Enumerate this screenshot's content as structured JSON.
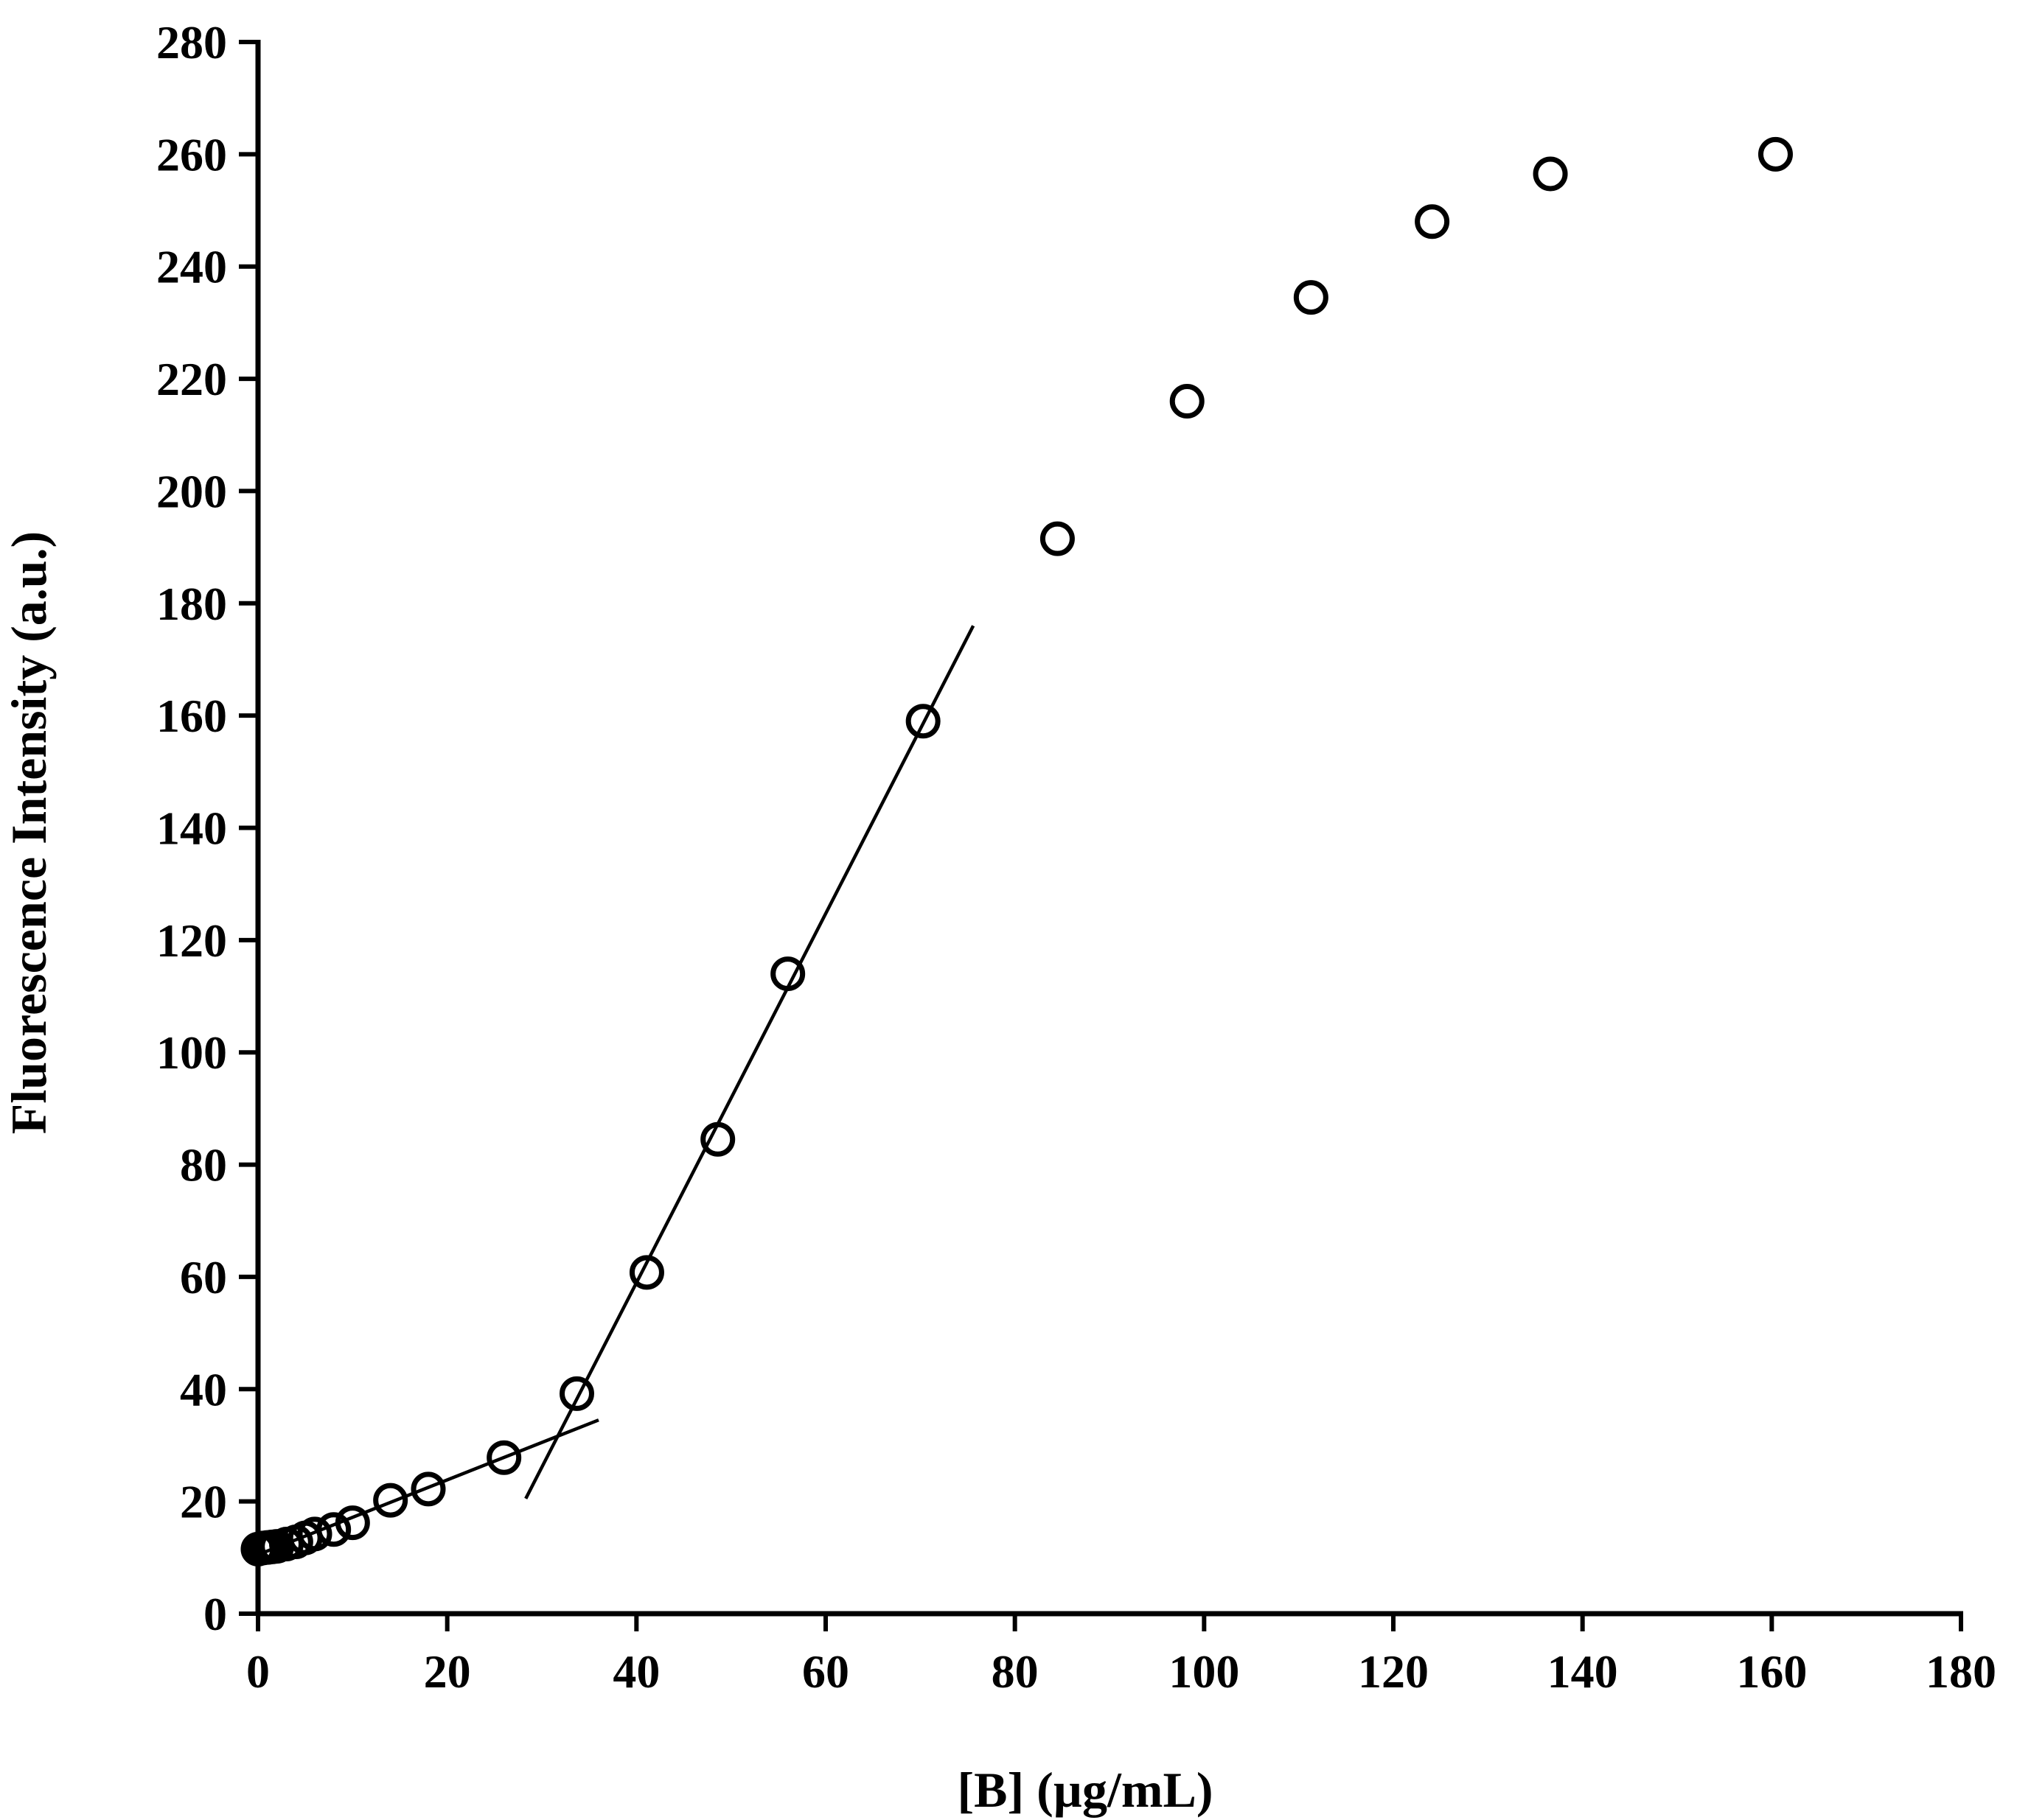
{
  "chart_data": {
    "type": "scatter",
    "title": "",
    "xlabel": "[B] (µg/mL)",
    "ylabel": "Fluorescence Intensity (a.u.)",
    "xlim": [
      0,
      180
    ],
    "ylim": [
      0,
      280
    ],
    "xticks": [
      0,
      20,
      40,
      60,
      80,
      100,
      120,
      140,
      160,
      180
    ],
    "yticks": [
      0,
      20,
      40,
      60,
      80,
      100,
      120,
      140,
      160,
      180,
      200,
      220,
      240,
      260,
      280
    ],
    "grid": false,
    "legend": "none",
    "series": [
      {
        "name": "data",
        "marker": "open-circle",
        "color": "#000000",
        "points": [
          {
            "x": 0.0,
            "y": 11.5
          },
          {
            "x": 0.5,
            "y": 11.7
          },
          {
            "x": 1.0,
            "y": 11.8
          },
          {
            "x": 1.5,
            "y": 11.9
          },
          {
            "x": 2.0,
            "y": 12.0
          },
          {
            "x": 3.0,
            "y": 12.4
          },
          {
            "x": 4.0,
            "y": 12.8
          },
          {
            "x": 5.0,
            "y": 13.5
          },
          {
            "x": 6.0,
            "y": 14.2
          },
          {
            "x": 8.0,
            "y": 15.0
          },
          {
            "x": 10.0,
            "y": 16.2
          },
          {
            "x": 14.0,
            "y": 20.2
          },
          {
            "x": 18.0,
            "y": 22.2
          },
          {
            "x": 26.0,
            "y": 27.8
          },
          {
            "x": 33.7,
            "y": 39.2
          },
          {
            "x": 41.1,
            "y": 60.8
          },
          {
            "x": 48.6,
            "y": 84.5
          },
          {
            "x": 56.0,
            "y": 114.0
          },
          {
            "x": 70.3,
            "y": 159.0
          },
          {
            "x": 84.5,
            "y": 191.5
          },
          {
            "x": 98.2,
            "y": 216.0
          },
          {
            "x": 111.3,
            "y": 234.5
          },
          {
            "x": 124.1,
            "y": 248.0
          },
          {
            "x": 136.6,
            "y": 256.5
          },
          {
            "x": 160.4,
            "y": 260.0
          }
        ]
      }
    ],
    "fit_lines": [
      {
        "name": "low-range fit",
        "x1": 0,
        "y1": 10.5,
        "x2": 36,
        "y2": 34.5
      },
      {
        "name": "linear-range fit",
        "x1": 28.3,
        "y1": 20.5,
        "x2": 75.6,
        "y2": 176.0
      }
    ]
  }
}
